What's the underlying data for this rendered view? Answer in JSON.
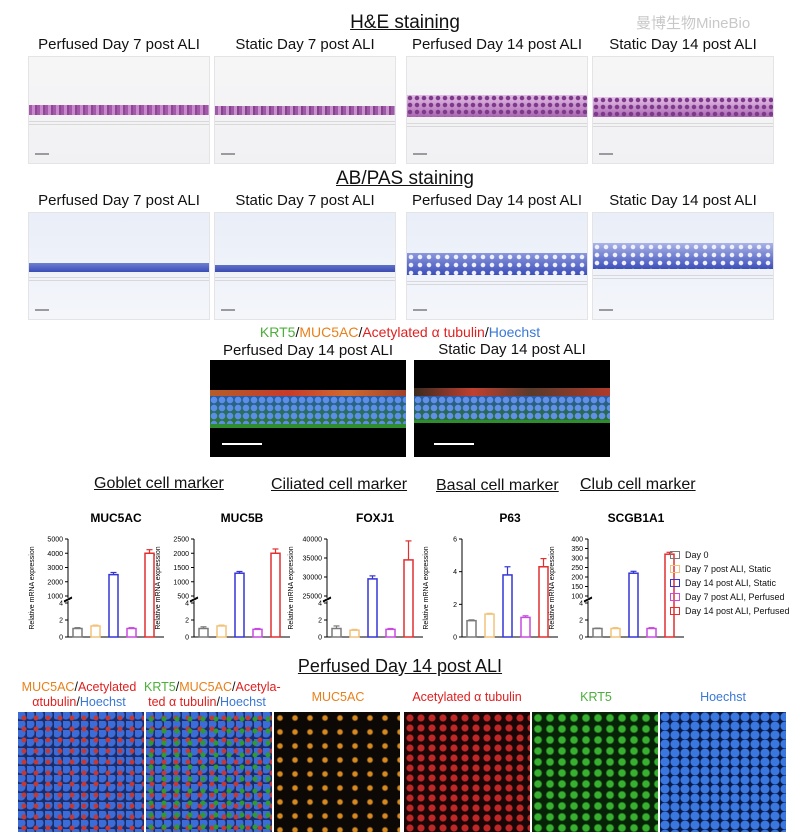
{
  "watermark": "曼博生物MineBio",
  "he_section": {
    "title": "H&E staining",
    "panels": [
      "Perfused Day 7 post ALI",
      "Static Day 7 post ALI",
      "Perfused Day 14 post ALI",
      "Static Day 14 post ALI"
    ]
  },
  "abpas_section": {
    "title": "AB/PAS staining",
    "panels": [
      "Perfused Day 7 post ALI",
      "Static Day 7 post ALI",
      "Perfused Day 14 post ALI",
      "Static Day 14 post ALI"
    ]
  },
  "if_section": {
    "legend": [
      {
        "text": "KRT5",
        "color": "#4caf3a"
      },
      {
        "text": "/",
        "color": "#111111"
      },
      {
        "text": "MUC5AC",
        "color": "#e8801a"
      },
      {
        "text": "/",
        "color": "#111111"
      },
      {
        "text": "Acetylated α tubulin",
        "color": "#e02020"
      },
      {
        "text": "/",
        "color": "#111111"
      },
      {
        "text": "Hoechst",
        "color": "#3a78d6"
      }
    ],
    "panels": [
      "Perfused Day 14 post ALI",
      "Static Day 14 post ALI"
    ]
  },
  "marker_headers": [
    "Goblet cell marker",
    "Ciliated cell marker",
    "Basal cell marker",
    "Club cell marker"
  ],
  "y_axis_label": "Relative mRNA expression",
  "legend": [
    {
      "label": "Day 0",
      "color": "#7a7a7a"
    },
    {
      "label": "Day 7 post ALI, Static",
      "color": "#f2c27a"
    },
    {
      "label": "Day 14 post ALI, Static",
      "color": "#3535d6"
    },
    {
      "label": "Day 7 post ALI, Perfused",
      "color": "#c84ae0"
    },
    {
      "label": "Day 14 post ALI, Perfused",
      "color": "#e03030"
    }
  ],
  "chart_data": [
    {
      "type": "bar",
      "title": "MUC5AC",
      "ylabel": "Relative mRNA expression",
      "axis_break": true,
      "lower_ticks": [
        0,
        2,
        4
      ],
      "lower_ylim": [
        0,
        4
      ],
      "upper_ticks": [
        1000,
        2000,
        3000,
        4000,
        5000
      ],
      "upper_ylim": [
        1000,
        5000
      ],
      "categories": [
        "Day 0",
        "Day 7 post ALI, Static",
        "Day 14 post ALI, Static",
        "Day 7 post ALI, Perfused",
        "Day 14 post ALI, Perfused"
      ],
      "values": [
        1.0,
        1.3,
        2500,
        1.0,
        4000
      ],
      "errors": [
        0.1,
        0.1,
        150,
        0.1,
        250
      ]
    },
    {
      "type": "bar",
      "title": "MUC5B",
      "ylabel": "Relative mRNA expression",
      "axis_break": true,
      "lower_ticks": [
        0,
        2,
        4
      ],
      "lower_ylim": [
        0,
        4
      ],
      "upper_ticks": [
        500,
        1000,
        1500,
        2000,
        2500
      ],
      "upper_ylim": [
        500,
        2500
      ],
      "categories": [
        "Day 0",
        "Day 7 post ALI, Static",
        "Day 14 post ALI, Static",
        "Day 7 post ALI, Perfused",
        "Day 14 post ALI, Perfused"
      ],
      "values": [
        1.0,
        1.3,
        1300,
        0.9,
        2000
      ],
      "errors": [
        0.2,
        0.1,
        60,
        0.1,
        150
      ]
    },
    {
      "type": "bar",
      "title": "FOXJ1",
      "ylabel": "Relative mRNA expression",
      "axis_break": true,
      "lower_ticks": [
        0,
        2,
        4
      ],
      "lower_ylim": [
        0,
        4
      ],
      "upper_ticks": [
        25000,
        30000,
        35000,
        40000
      ],
      "upper_ylim": [
        25000,
        40000
      ],
      "categories": [
        "Day 0",
        "Day 7 post ALI, Static",
        "Day 14 post ALI, Static",
        "Day 7 post ALI, Perfused",
        "Day 14 post ALI, Perfused"
      ],
      "values": [
        1.0,
        0.8,
        29500,
        0.9,
        34500
      ],
      "errors": [
        0.3,
        0.1,
        800,
        0.1,
        5000
      ]
    },
    {
      "type": "bar",
      "title": "P63",
      "ylabel": "Relative mRNA expression",
      "axis_break": false,
      "ticks": [
        0,
        2,
        4,
        6
      ],
      "ylim": [
        0,
        6
      ],
      "categories": [
        "Day 0",
        "Day 7 post ALI, Static",
        "Day 14 post ALI, Static",
        "Day 7 post ALI, Perfused",
        "Day 14 post ALI, Perfused"
      ],
      "values": [
        1.0,
        1.4,
        3.8,
        1.2,
        4.3
      ],
      "errors": [
        0.05,
        0.05,
        0.5,
        0.1,
        0.5
      ]
    },
    {
      "type": "bar",
      "title": "SCGB1A1",
      "ylabel": "Relative mRNA expression",
      "axis_break": true,
      "lower_ticks": [
        0,
        2,
        4
      ],
      "lower_ylim": [
        0,
        4
      ],
      "upper_ticks": [
        100,
        150,
        200,
        250,
        300,
        350,
        400
      ],
      "upper_ylim": [
        100,
        400
      ],
      "categories": [
        "Day 0",
        "Day 7 post ALI, Static",
        "Day 14 post ALI, Static",
        "Day 7 post ALI, Perfused",
        "Day 14 post ALI, Perfused"
      ],
      "values": [
        1.0,
        1.0,
        220,
        1.0,
        320
      ],
      "errors": [
        0.05,
        0.1,
        10,
        0.1,
        10
      ]
    }
  ],
  "bottom_section": {
    "title": "Perfused Day 14 post ALI",
    "panels": [
      {
        "parts": [
          {
            "text": "MUC5AC",
            "color": "#e8801a"
          },
          {
            "text": "/",
            "color": "#111111"
          },
          {
            "text": "Acetylated ",
            "color": "#e02020"
          },
          {
            "text": "αtubulin",
            "color": "#e02020"
          },
          {
            "text": "/",
            "color": "#111111"
          },
          {
            "text": "Hoechst",
            "color": "#3a78d6"
          }
        ]
      },
      {
        "parts": [
          {
            "text": "KRT5",
            "color": "#4caf3a"
          },
          {
            "text": "/",
            "color": "#111111"
          },
          {
            "text": "MUC5AC",
            "color": "#e8801a"
          },
          {
            "text": "/",
            "color": "#111111"
          },
          {
            "text": "Acetyla-",
            "color": "#e02020"
          },
          {
            "text": "ted α tubulin",
            "color": "#e02020"
          },
          {
            "text": "/",
            "color": "#111111"
          },
          {
            "text": "Hoechst",
            "color": "#3a78d6"
          }
        ]
      },
      {
        "parts": [
          {
            "text": "MUC5AC",
            "color": "#e8801a"
          }
        ]
      },
      {
        "parts": [
          {
            "text": "Acetylated α tubulin",
            "color": "#e02020"
          }
        ]
      },
      {
        "parts": [
          {
            "text": "KRT5",
            "color": "#4caf3a"
          }
        ]
      },
      {
        "parts": [
          {
            "text": "Hoechst",
            "color": "#3a78d6"
          }
        ]
      }
    ]
  }
}
